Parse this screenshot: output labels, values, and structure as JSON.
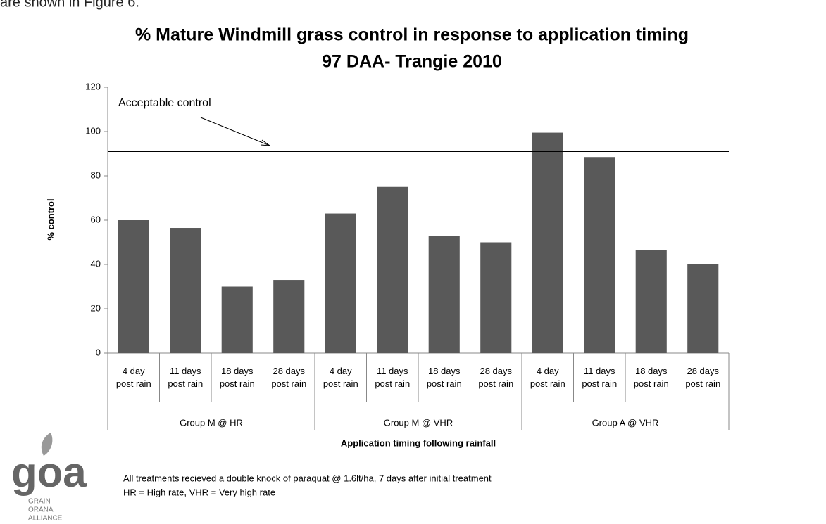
{
  "intro_text": "are shown in Figure 6.",
  "chart_data": {
    "type": "bar",
    "title": "% Mature Windmill grass control in response to application timing",
    "subtitle": "97 DAA- Trangie 2010",
    "categories": [
      "4 day\npost rain",
      "11 days\npost rain",
      "18 days\npost rain",
      "28 days\npost rain",
      "4 day\npost rain",
      "11 days\npost rain",
      "18 days\npost rain",
      "28 days\npost rain",
      "4 day\npost rain",
      "11 days\npost rain",
      "18 days\npost rain",
      "28 days\npost rain"
    ],
    "groups": [
      "Group M @ HR",
      "Group M @ VHR",
      "Group A @ VHR"
    ],
    "values": [
      60,
      56.5,
      30,
      33,
      63,
      75,
      53,
      50,
      99.5,
      88.5,
      46.5,
      40
    ],
    "color": "#595959",
    "ylim": [
      0,
      120
    ],
    "yticks": [
      0,
      20,
      40,
      60,
      80,
      100,
      120
    ],
    "ylabel": "% control",
    "xlabel": "Application timing following rainfall",
    "reference_line": {
      "label": "Acceptable control",
      "value": 91
    },
    "notes": [
      "All treatments recieved a double knock of paraquat @ 1.6lt/ha, 7 days after initial treatment",
      "HR = High rate, VHR = Very high rate"
    ]
  },
  "logo": {
    "mark": "goa",
    "lines": [
      "GRAIN",
      "ORANA",
      "ALLIANCE"
    ]
  }
}
